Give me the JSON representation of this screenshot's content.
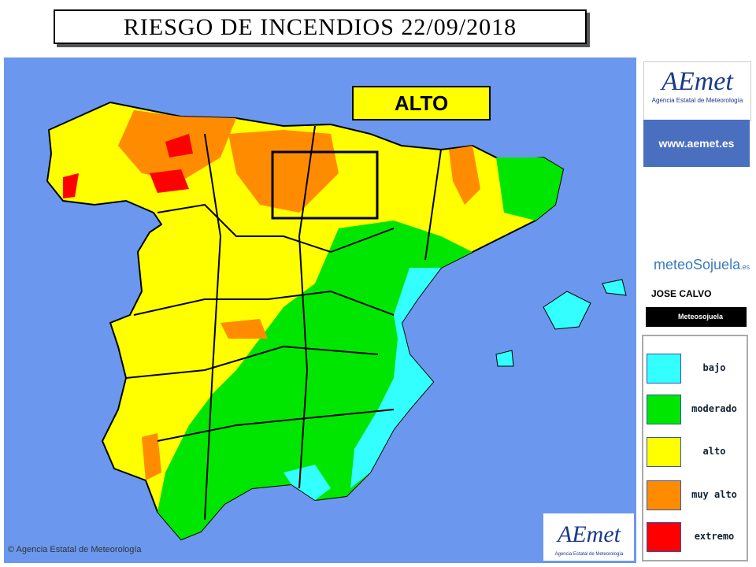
{
  "header": {
    "title": "RIESGO DE INCENDIOS 22/09/2018"
  },
  "highlight": "ALTO",
  "logo": {
    "name": "AEmet",
    "subtitle": "Agencia Estatal de Meteorología"
  },
  "website": "www.aemet.es",
  "credit": {
    "brand": "meteoSojuela",
    "domain": ".es",
    "author": "JOSE CALVO",
    "social": "Meteosojuela"
  },
  "legend": [
    {
      "label": "bajo",
      "color": "#33ffff"
    },
    {
      "label": "moderado",
      "color": "#00e600"
    },
    {
      "label": "alto",
      "color": "#ffff00"
    },
    {
      "label": "muy alto",
      "color": "#ff8c00"
    },
    {
      "label": "extremo",
      "color": "#ff0000"
    }
  ],
  "copyright": "© Agencia Estatal de Meteorología"
}
